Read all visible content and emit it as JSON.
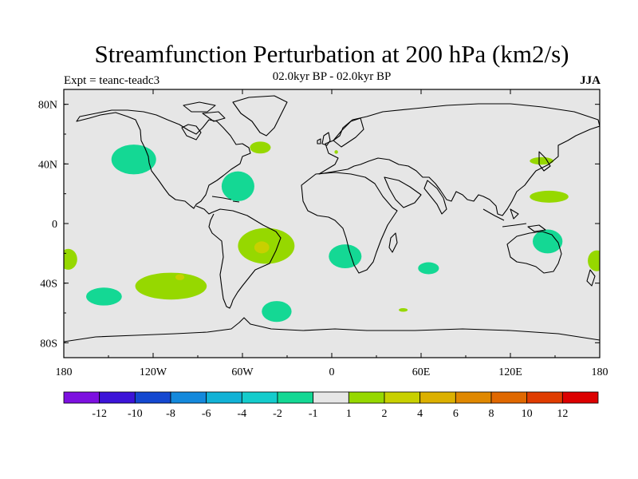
{
  "title": "Streamfunction Perturbation at 200 hPa (km2/s)",
  "subtitle_left": "Expt = teanc-teadc3",
  "subtitle_center": "02.0kyr BP - 02.0kyr BP",
  "subtitle_right": "JJA",
  "map": {
    "projection": "cylindrical-equidistant",
    "lon_range": [
      -180,
      180
    ],
    "lat_range": [
      -90,
      90
    ],
    "background_color": "#e6e6e6",
    "x_ticks": [
      {
        "lon": -180,
        "label": "180"
      },
      {
        "lon": -120,
        "label": "120W"
      },
      {
        "lon": -60,
        "label": "60W"
      },
      {
        "lon": 0,
        "label": "0"
      },
      {
        "lon": 60,
        "label": "60E"
      },
      {
        "lon": 120,
        "label": "120E"
      },
      {
        "lon": 180,
        "label": "180"
      }
    ],
    "y_ticks": [
      {
        "lat": 80,
        "label": "80N"
      },
      {
        "lat": 40,
        "label": "40N"
      },
      {
        "lat": 0,
        "label": "0"
      },
      {
        "lat": -40,
        "label": "40S"
      },
      {
        "lat": -80,
        "label": "80S"
      }
    ]
  },
  "colorbar": {
    "colors": [
      "#7d10e0",
      "#3c14d8",
      "#1448d0",
      "#1489dc",
      "#12b2d6",
      "#14cccc",
      "#14d894",
      "#e6e6e6",
      "#96d800",
      "#c8d000",
      "#dcb000",
      "#e08800",
      "#e06800",
      "#e03c00",
      "#dc0000"
    ],
    "labels": [
      "-12",
      "-10",
      "-8",
      "-6",
      "-4",
      "-2",
      "-1",
      "1",
      "2",
      "4",
      "6",
      "8",
      "10",
      "12"
    ]
  },
  "chart_data": {
    "type": "map",
    "field": "200 hPa streamfunction perturbation",
    "units": "km2/s",
    "season": "JJA",
    "anomalies": [
      {
        "name": "north-pacific-negative",
        "lon": -133,
        "lat": 43,
        "rx": 15,
        "ry": 10,
        "level": -1,
        "color": "#14d894"
      },
      {
        "name": "north-atlantic-positive",
        "lon": -48,
        "lat": 51,
        "rx": 7,
        "ry": 4,
        "level": 1,
        "color": "#96d800"
      },
      {
        "name": "west-atlantic-negative",
        "lon": -63,
        "lat": 25,
        "rx": 11,
        "ry": 10,
        "level": -1,
        "color": "#14d894"
      },
      {
        "name": "europe-small-positive",
        "lon": 3,
        "lat": 48,
        "rx": 1.2,
        "ry": 1.2,
        "level": 1,
        "color": "#96d800"
      },
      {
        "name": "japan-positive",
        "lon": 141,
        "lat": 42,
        "rx": 8,
        "ry": 2.5,
        "level": 1,
        "color": "#96d800"
      },
      {
        "name": "west-pacific-positive",
        "lon": 146,
        "lat": 18,
        "rx": 13,
        "ry": 4,
        "level": 1,
        "color": "#96d800"
      },
      {
        "name": "south-america-positive",
        "lon": -44,
        "lat": -15,
        "rx": 19,
        "ry": 12,
        "level": 1,
        "color": "#96d800"
      },
      {
        "name": "south-america-core-2",
        "lon": -47,
        "lat": -16,
        "rx": 5,
        "ry": 4,
        "level": 2,
        "color": "#c8d000"
      },
      {
        "name": "southeast-pacific-positive",
        "lon": -108,
        "lat": -42,
        "rx": 24,
        "ry": 9,
        "level": 1,
        "color": "#96d800"
      },
      {
        "name": "southeast-pacific-core-2",
        "lon": -102,
        "lat": -36,
        "rx": 3,
        "ry": 2,
        "level": 2,
        "color": "#c8d000"
      },
      {
        "name": "south-pacific-negative",
        "lon": -153,
        "lat": -49,
        "rx": 12,
        "ry": 6,
        "level": -1,
        "color": "#14d894"
      },
      {
        "name": "dateline-west-positive",
        "lon": -177,
        "lat": -24,
        "rx": 6,
        "ry": 7,
        "level": 1,
        "color": "#96d800"
      },
      {
        "name": "dateline-east-positive",
        "lon": 178,
        "lat": -25,
        "rx": 6,
        "ry": 7,
        "level": 1,
        "color": "#96d800"
      },
      {
        "name": "south-atlantic-negative",
        "lon": -37,
        "lat": -59,
        "rx": 10,
        "ry": 7,
        "level": -1,
        "color": "#14d894"
      },
      {
        "name": "southern-africa-negative",
        "lon": 9,
        "lat": -22,
        "rx": 11,
        "ry": 8,
        "level": -1,
        "color": "#14d894"
      },
      {
        "name": "indian-ocean-negative",
        "lon": 65,
        "lat": -30,
        "rx": 7,
        "ry": 4,
        "level": -1,
        "color": "#14d894"
      },
      {
        "name": "southern-ocean-small-positive",
        "lon": 48,
        "lat": -58,
        "rx": 3,
        "ry": 1.2,
        "level": 1,
        "color": "#96d800"
      },
      {
        "name": "australia-negative",
        "lon": 145,
        "lat": -12,
        "rx": 10,
        "ry": 8,
        "level": -1,
        "color": "#14d894"
      }
    ]
  }
}
